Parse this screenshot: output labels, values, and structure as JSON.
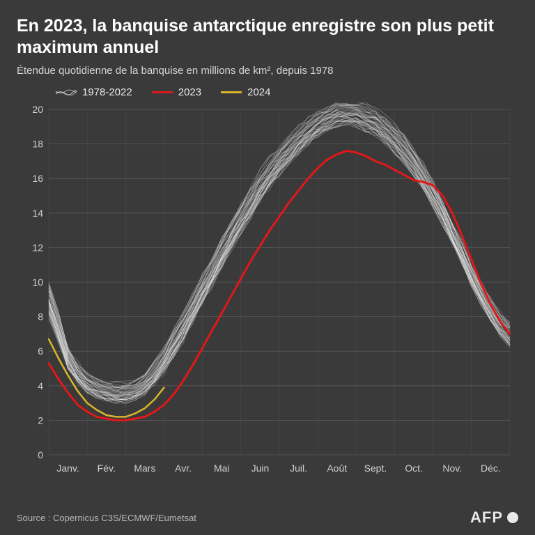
{
  "title": "En 2023, la banquise antarctique enregistre son plus petit maximum annuel",
  "subtitle": "Étendue quotidienne de la banquise en millions de km², depuis 1978",
  "source": "Source : Copernicus C3S/ECMWF/Eumetsat",
  "logo_text": "AFP",
  "chart": {
    "type": "line",
    "background_color": "#3a3a3a",
    "grid_color": "#5a5a5a",
    "text_color": "#d0d0d0",
    "axis_fontsize": 14,
    "xlim": [
      0,
      12
    ],
    "ylim": [
      0,
      20
    ],
    "ytick_step": 2,
    "yticks": [
      0,
      2,
      4,
      6,
      8,
      10,
      12,
      14,
      16,
      18,
      20
    ],
    "xticks": [
      "Janv.",
      "Fév.",
      "Mars",
      "Avr.",
      "Mai",
      "Juin",
      "Juil.",
      "Août",
      "Sept.",
      "Oct.",
      "Nov.",
      "Déc."
    ],
    "legend": [
      {
        "label": "1978-2022",
        "color": "#ffffff",
        "width": 1,
        "opacity": 0.38,
        "key": "historical"
      },
      {
        "label": "2023",
        "color": "#e01818",
        "width": 3,
        "opacity": 1,
        "key": "y2023"
      },
      {
        "label": "2024",
        "color": "#d9b62c",
        "width": 2.5,
        "opacity": 1,
        "key": "y2024"
      }
    ],
    "series": {
      "historical_band": {
        "upper": [
          10.0,
          8.2,
          6.2,
          5.3,
          4.7,
          4.4,
          4.2,
          4.1,
          4.1,
          4.3,
          4.7,
          5.3,
          6.2,
          7.2,
          8.2,
          9.3,
          10.4,
          11.4,
          12.5,
          13.5,
          14.5,
          15.4,
          16.3,
          17.1,
          17.8,
          18.4,
          18.9,
          19.4,
          19.8,
          20.1,
          20.3,
          20.4,
          20.4,
          20.2,
          20.0,
          19.6,
          19.1,
          18.5,
          17.7,
          16.8,
          15.8,
          14.7,
          13.5,
          12.3,
          11.0,
          9.9,
          9.0,
          8.2,
          7.6
        ],
        "lower": [
          6.2,
          5.0,
          4.0,
          3.2,
          2.7,
          2.4,
          2.2,
          2.1,
          2.1,
          2.2,
          2.5,
          2.9,
          3.5,
          4.3,
          5.2,
          6.2,
          7.3,
          8.3,
          9.4,
          10.4,
          11.4,
          12.3,
          13.2,
          14.0,
          14.8,
          15.5,
          16.2,
          16.8,
          17.3,
          17.7,
          18.0,
          18.1,
          17.9,
          17.6,
          17.2,
          16.7,
          16.1,
          15.5,
          14.8,
          14.0,
          13.1,
          12.1,
          11.0,
          9.9,
          8.7,
          7.6,
          6.6,
          5.8,
          5.2
        ],
        "n_lines": 44,
        "color": "#ffffff",
        "width": 0.9,
        "opacity": 0.28
      },
      "y2023": {
        "color": "#e01818",
        "width": 3,
        "opacity": 1,
        "values": [
          5.3,
          4.4,
          3.6,
          2.9,
          2.5,
          2.2,
          2.1,
          2.0,
          2.0,
          2.1,
          2.2,
          2.5,
          2.9,
          3.5,
          4.3,
          5.2,
          6.2,
          7.2,
          8.2,
          9.2,
          10.2,
          11.2,
          12.1,
          13.0,
          13.8,
          14.6,
          15.3,
          16.0,
          16.6,
          17.1,
          17.4,
          17.6,
          17.5,
          17.3,
          17.0,
          16.8,
          16.5,
          16.2,
          15.9,
          15.8,
          15.6,
          15.0,
          14.0,
          12.7,
          11.3,
          9.9,
          8.7,
          7.7,
          7.0
        ]
      },
      "y2024": {
        "color": "#d9b62c",
        "width": 2.5,
        "opacity": 1,
        "values": [
          6.7,
          5.6,
          4.6,
          3.7,
          3.0,
          2.6,
          2.3,
          2.2,
          2.2,
          2.4,
          2.7,
          3.2,
          3.9
        ]
      }
    }
  }
}
